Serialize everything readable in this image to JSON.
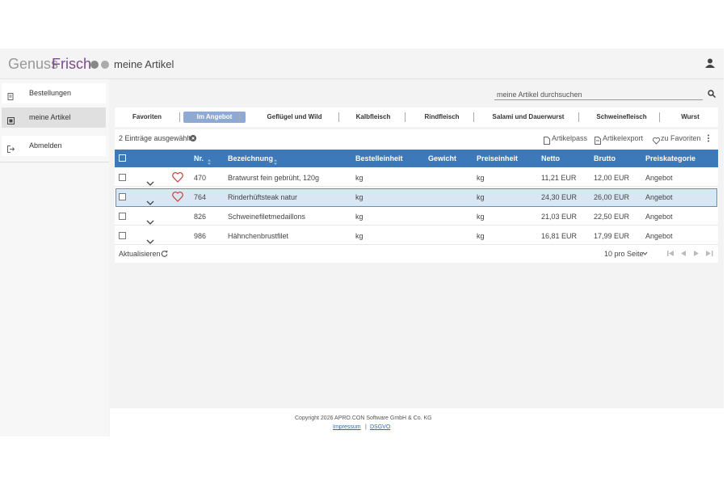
{
  "header": {
    "logo_part1": "Genuss",
    "logo_part2": "Frisch",
    "page_title": "meine Artikel"
  },
  "sidebar": {
    "items": [
      {
        "label": "Bestellungen",
        "active": false
      },
      {
        "label": "meine Artikel",
        "active": true
      },
      {
        "label": "Abmelden",
        "active": false
      }
    ]
  },
  "search": {
    "placeholder": "meine Artikel durchsuchen"
  },
  "tabs": [
    {
      "label": "Favoriten",
      "active": false
    },
    {
      "label": "Im Angebot",
      "active": true
    },
    {
      "label": "Geflügel und Wild",
      "active": false
    },
    {
      "label": "Kalbfleisch",
      "active": false
    },
    {
      "label": "Rindfleisch",
      "active": false
    },
    {
      "label": "Salami und Dauerwurst",
      "active": false
    },
    {
      "label": "Schweinefleisch",
      "active": false
    },
    {
      "label": "Wurst",
      "active": false
    }
  ],
  "toolbar": {
    "selection": "2 Einträge ausgewählt",
    "actions": [
      "Artikelpass",
      "Artikelexport",
      "zu Favoriten"
    ]
  },
  "table": {
    "columns": [
      "Nr.",
      "Bezeichnung",
      "Bestelleinheit",
      "Gewicht",
      "Preiseinheit",
      "Netto",
      "Brutto",
      "Preiskategorie"
    ],
    "rows": [
      {
        "nr": 470,
        "name": "Bratwurst fein gebrüht, 120g",
        "unit": "kg",
        "price_unit": "kg",
        "netto": "11,21 EUR",
        "brutto": "12,00 EUR",
        "category": "Angebot",
        "favorite": true,
        "highlighted": false
      },
      {
        "nr": 764,
        "name": "Rinderhüftsteak natur",
        "unit": "kg",
        "price_unit": "kg",
        "netto": "24,30 EUR",
        "brutto": "26,00 EUR",
        "category": "Angebot",
        "favorite": true,
        "highlighted": true
      },
      {
        "nr": 826,
        "name": "Schweinefiletmedaillons",
        "unit": "kg",
        "price_unit": "kg",
        "netto": "21,03 EUR",
        "brutto": "22,50 EUR",
        "category": "Angebot",
        "favorite": false,
        "highlighted": false
      },
      {
        "nr": 986,
        "name": "Hähnchenbrustfilet",
        "unit": "kg",
        "price_unit": "kg",
        "netto": "16,81 EUR",
        "brutto": "17,99 EUR",
        "category": "Angebot",
        "favorite": false,
        "highlighted": false
      }
    ]
  },
  "table_footer": {
    "refresh": "Aktualisieren",
    "page_size": "10 pro Seite"
  },
  "footer": {
    "copyright": "Copyright 2026 APRO.CON Software GmbH & Co. KG",
    "links": [
      "Impressum",
      "DSGVO"
    ],
    "separator": "|"
  }
}
